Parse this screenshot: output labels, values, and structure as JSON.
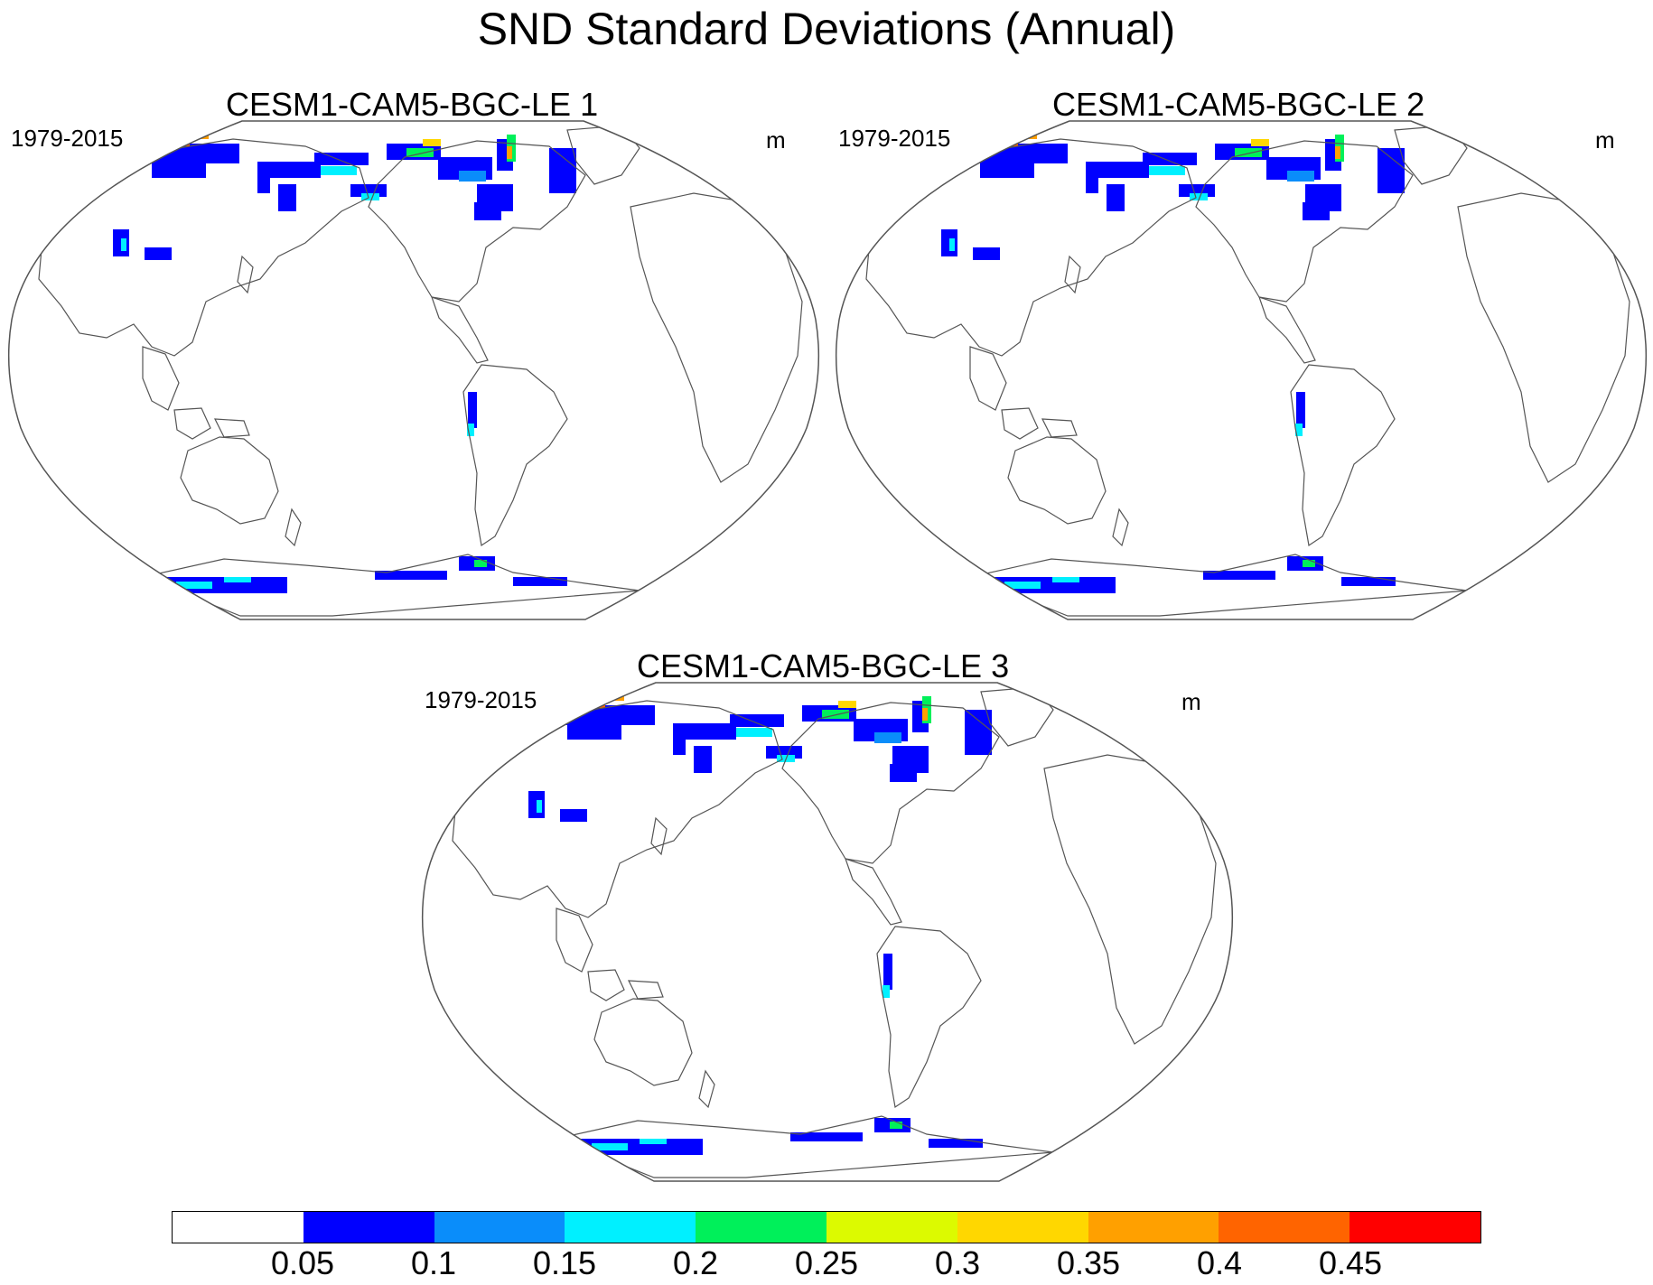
{
  "title": "SND Standard Deviations (Annual)",
  "panels": [
    {
      "title": "CESM1-CAM5-BGC-LE 1",
      "period": "1979-2015",
      "units": "m"
    },
    {
      "title": "CESM1-CAM5-BGC-LE 2",
      "period": "1979-2015",
      "units": "m"
    },
    {
      "title": "CESM1-CAM5-BGC-LE 3",
      "period": "1979-2015",
      "units": "m"
    }
  ],
  "colorbar": {
    "colors": [
      "#ffffff",
      "#0000ff",
      "#0a8dfa",
      "#00f0ff",
      "#00f05a",
      "#dcfa00",
      "#ffd700",
      "#ffa000",
      "#ff6400",
      "#ff0000"
    ],
    "labels": [
      "0.05",
      "0.1",
      "0.15",
      "0.2",
      "0.25",
      "0.3",
      "0.35",
      "0.4",
      "0.45"
    ]
  },
  "colors": {
    "land_outline": "#555555",
    "map_border": "#555555"
  }
}
